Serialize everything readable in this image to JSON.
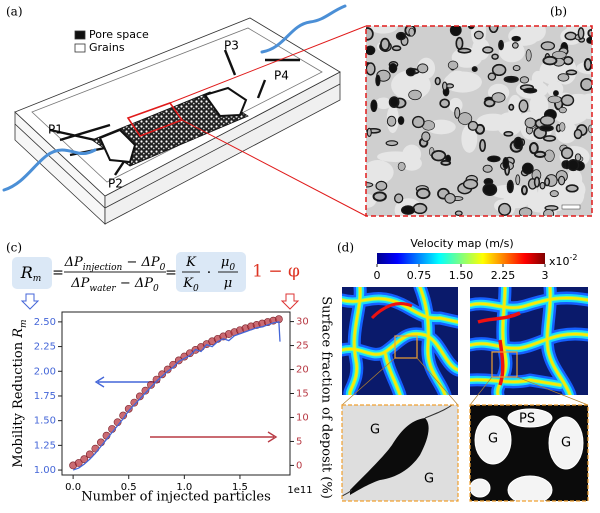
{
  "panel_a": {
    "label": "(a)",
    "legend": [
      "Pore space",
      "Grains"
    ],
    "ports": [
      "P1",
      "P2",
      "P3",
      "P4"
    ]
  },
  "panel_b": {
    "label": "(b)"
  },
  "panel_c": {
    "label": "(c)",
    "equation": {
      "lhs": [
        "R",
        "m"
      ],
      "eq": "=",
      "num": [
        "ΔP",
        "injection",
        " − ΔP",
        "0"
      ],
      "den": [
        "ΔP",
        "water",
        " − ΔP",
        "0"
      ],
      "k": [
        "K"
      ],
      "k0": [
        "K",
        "0"
      ],
      "dot": "·",
      "mu0": [
        "μ",
        "0"
      ],
      "mu": [
        "μ"
      ],
      "red_term": "1 − φ"
    }
  },
  "panel_d": {
    "label": "(d)",
    "colorbar_title": "Velocity map (m/s)",
    "colorbar_ticks": [
      0,
      0.75,
      {
        "value": 1.5,
        "label": "1.50"
      },
      2.25,
      3
    ],
    "colorbar_scale": [
      "x10",
      "-2"
    ],
    "inset_left": [
      "G",
      "G"
    ],
    "inset_right": [
      "PS",
      "G",
      "G"
    ]
  },
  "chart_data": {
    "type": "line",
    "xlabel": "Number of injected particles",
    "x_offset": "1e11",
    "ylabel": [
      "Mobility Reduction ",
      "R",
      "m"
    ],
    "y2label": "Surface fraction of deposit (%)",
    "xlim": [
      -0.1,
      1.95
    ],
    "xticks": [
      {
        "value": 0,
        "label": "0.0"
      },
      0.5,
      {
        "value": 1,
        "label": "1.0"
      },
      1.5
    ],
    "ylim": [
      0.95,
      2.6
    ],
    "yticks": [
      {
        "value": 1,
        "label": "1.00"
      },
      1.25,
      {
        "value": 1.5,
        "label": "1.50"
      },
      1.75,
      {
        "value": 2,
        "label": "2.00"
      },
      2.25,
      {
        "value": 2.5,
        "label": "2.50"
      }
    ],
    "y2lim": [
      -2,
      32
    ],
    "y2ticks": [
      0,
      5,
      10,
      15,
      20,
      25,
      30
    ],
    "series": [
      {
        "color": "#4466d8",
        "axis": "y",
        "x": [
          0,
          0.05,
          0.1,
          0.15,
          0.2,
          0.25,
          0.3,
          0.35,
          0.4,
          0.45,
          0.5,
          0.55,
          0.6,
          0.65,
          0.7,
          0.75,
          0.8,
          0.85,
          0.9,
          0.95,
          1,
          1.05,
          1.1,
          1.15,
          1.2,
          1.25,
          1.3,
          1.35,
          1.4,
          1.45,
          1.5,
          1.55,
          1.6,
          1.65,
          1.7,
          1.75,
          1.8,
          1.85,
          1.86
        ],
        "values": [
          1.0,
          1.02,
          1.06,
          1.11,
          1.17,
          1.24,
          1.31,
          1.38,
          1.45,
          1.52,
          1.6,
          1.66,
          1.72,
          1.78,
          1.84,
          1.9,
          1.95,
          2.0,
          2.04,
          2.1,
          2.13,
          2.16,
          2.22,
          2.2,
          2.27,
          2.25,
          2.3,
          2.33,
          2.31,
          2.36,
          2.38,
          2.4,
          2.42,
          2.44,
          2.45,
          2.47,
          2.49,
          2.5,
          2.3
        ]
      },
      {
        "color": "#b83a44",
        "axis": "y2",
        "x": [
          0,
          0.05,
          0.1,
          0.15,
          0.2,
          0.25,
          0.3,
          0.35,
          0.4,
          0.45,
          0.5,
          0.55,
          0.6,
          0.65,
          0.7,
          0.75,
          0.8,
          0.85,
          0.9,
          0.95,
          1,
          1.05,
          1.1,
          1.15,
          1.2,
          1.25,
          1.3,
          1.35,
          1.4,
          1.45,
          1.5,
          1.55,
          1.6,
          1.65,
          1.7,
          1.75,
          1.8,
          1.85
        ],
        "values": [
          0,
          0.5,
          1.3,
          2.3,
          3.5,
          4.8,
          6.2,
          7.6,
          9,
          10.4,
          11.8,
          13.1,
          14.4,
          15.6,
          16.8,
          17.9,
          19,
          20,
          21,
          21.9,
          22.7,
          23.4,
          24.1,
          24.7,
          25.3,
          25.9,
          26.4,
          26.9,
          27.4,
          27.8,
          28.2,
          28.6,
          29,
          29.3,
          29.6,
          29.9,
          30.2,
          30.5
        ]
      }
    ]
  }
}
